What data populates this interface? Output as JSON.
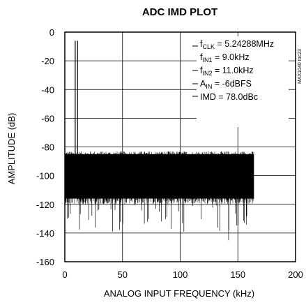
{
  "chart_data": {
    "type": "line",
    "title": "ADC IMD PLOT",
    "xlabel": "ANALOG INPUT FREQUENCY (kHz)",
    "ylabel": "AMPLITUDE (dB)",
    "xlim": [
      0,
      200
    ],
    "ylim": [
      -160,
      0
    ],
    "x_ticks": [
      0,
      50,
      100,
      150,
      200
    ],
    "x_tick_labels": [
      "0",
      "50",
      "100",
      "150",
      "200"
    ],
    "y_ticks": [
      0,
      -20,
      -40,
      -60,
      -80,
      -100,
      -120,
      -140,
      -160
    ],
    "y_tick_labels": [
      "0",
      "-20",
      "-40",
      "-60",
      "-80",
      "-100",
      "-120",
      "-140",
      "-160"
    ],
    "grid": true,
    "tones": [
      {
        "freq_khz": 9.0,
        "amplitude_db": -6
      },
      {
        "freq_khz": 11.0,
        "amplitude_db": -6
      }
    ],
    "noise_floor": {
      "x_start_khz": 0,
      "x_end_khz": 163.84,
      "center_db": -100,
      "band_top_db": -88,
      "band_bottom_db": -112,
      "peak_high_db": -85,
      "spur_low_db": -145
    },
    "annotations": {
      "fclk": {
        "base": "f",
        "sub": "CLK",
        "rest": " = 5.24288MHz"
      },
      "fin1": {
        "base": "f",
        "sub": "IN1",
        "rest": " = 9.0kHz"
      },
      "fin2": {
        "base": "f",
        "sub": "IN2",
        "rest": " = 11.0kHz"
      },
      "ain": {
        "base": "A",
        "sub": "IN",
        "rest": " = -6dBFS"
      },
      "imd": {
        "base": "IMD = 78.0dBc",
        "sub": "",
        "rest": ""
      }
    },
    "watermark": "MAX1040 toc23"
  }
}
